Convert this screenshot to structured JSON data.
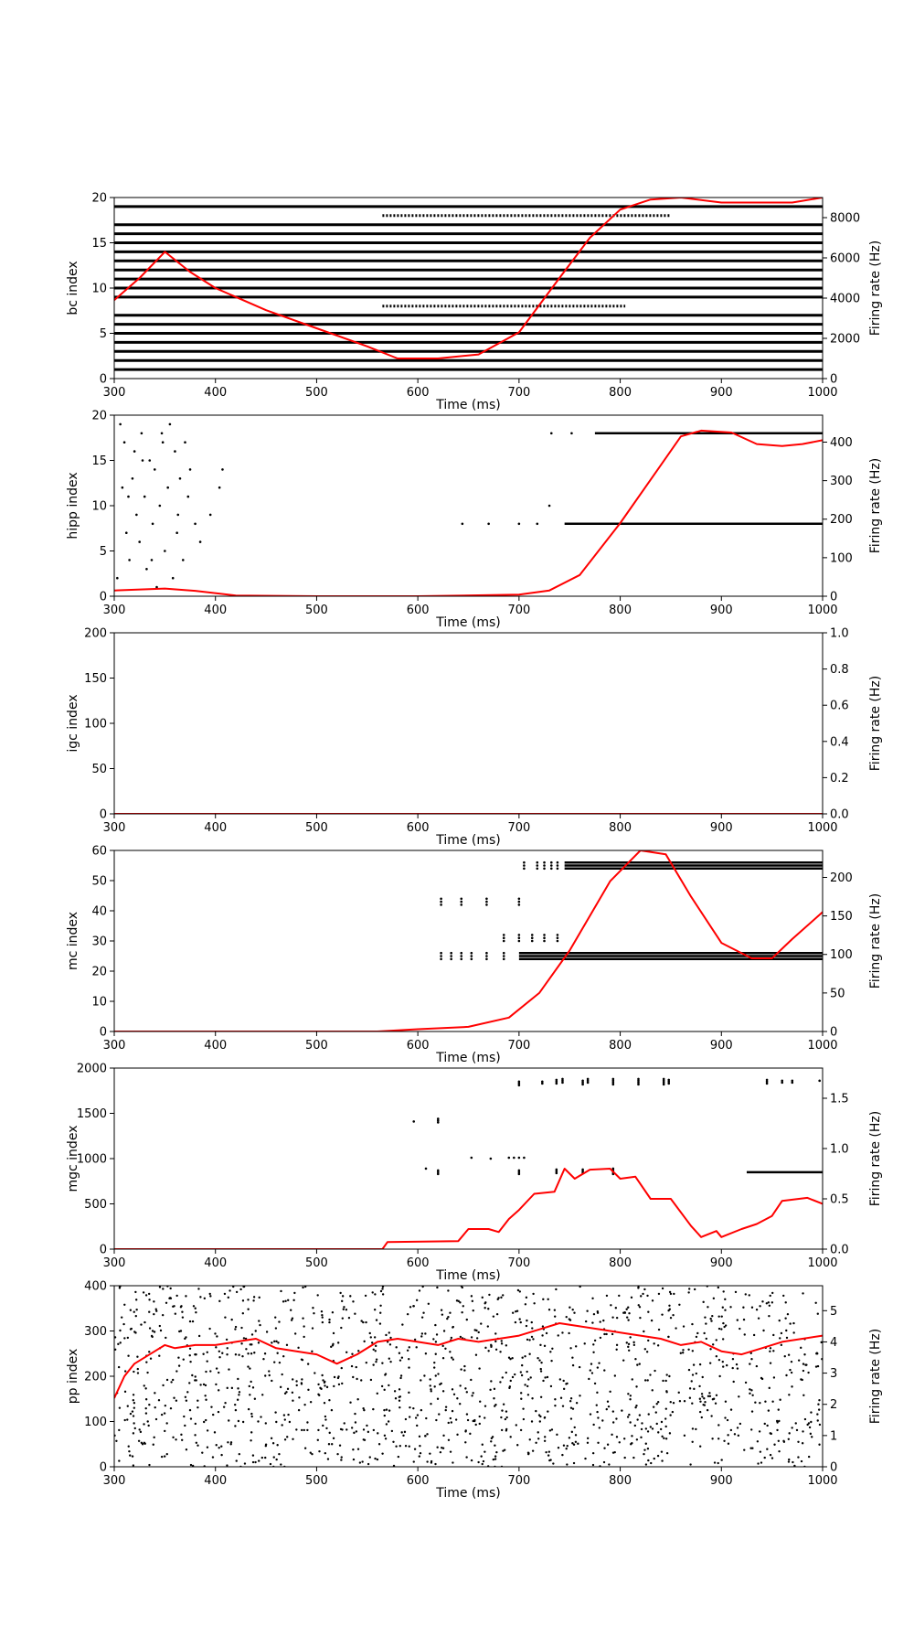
{
  "figure": {
    "background": "#ffffff",
    "spike_color": "#000000",
    "rate_color": "#ff0000",
    "panel_count": 6
  },
  "chart_data": [
    {
      "type": "scatter",
      "name": "bc",
      "xlabel": "Time (ms)",
      "ylabel": "bc index",
      "y2label": "Firing rate (Hz)",
      "xlim": [
        300,
        1000
      ],
      "ylim": [
        0,
        20
      ],
      "y2lim": [
        0,
        9000
      ],
      "xticks": [
        300,
        400,
        500,
        600,
        700,
        800,
        900,
        1000
      ],
      "yticks": [
        0,
        5,
        10,
        15,
        20
      ],
      "y2ticks": [
        0,
        2000,
        4000,
        6000,
        8000
      ],
      "spike_rows": [
        1,
        2,
        3,
        4,
        5,
        6,
        7,
        9,
        10,
        11,
        12,
        13,
        14,
        15,
        16,
        17,
        19
      ],
      "spike_row_range": [
        300,
        1000
      ],
      "partial_rows": [
        {
          "index": 8,
          "x_start": 565,
          "x_end": 805
        },
        {
          "index": 18,
          "x_start": 565,
          "x_end": 850
        }
      ],
      "rate": {
        "x": [
          300,
          325,
          350,
          375,
          400,
          450,
          500,
          550,
          580,
          620,
          660,
          700,
          740,
          770,
          800,
          830,
          860,
          900,
          970,
          1000
        ],
        "y": [
          3900,
          5000,
          6300,
          5300,
          4500,
          3400,
          2500,
          1600,
          1000,
          1000,
          1200,
          2300,
          5000,
          7000,
          8400,
          8900,
          9000,
          8750,
          8750,
          9000
        ]
      }
    },
    {
      "type": "scatter",
      "name": "hipp",
      "xlabel": "Time (ms)",
      "ylabel": "hipp index",
      "y2label": "Firing rate (Hz)",
      "xlim": [
        300,
        1000
      ],
      "ylim": [
        0,
        20
      ],
      "y2lim": [
        0,
        470
      ],
      "xticks": [
        300,
        400,
        500,
        600,
        700,
        800,
        900,
        1000
      ],
      "yticks": [
        0,
        5,
        10,
        15,
        20
      ],
      "y2ticks": [
        0,
        100,
        200,
        300,
        400
      ],
      "spikes": [
        [
          303,
          2
        ],
        [
          306,
          19
        ],
        [
          308,
          12
        ],
        [
          310,
          17
        ],
        [
          312,
          7
        ],
        [
          315,
          4
        ],
        [
          318,
          13
        ],
        [
          320,
          16
        ],
        [
          322,
          9
        ],
        [
          325,
          6
        ],
        [
          327,
          18
        ],
        [
          330,
          11
        ],
        [
          332,
          3
        ],
        [
          335,
          15
        ],
        [
          338,
          8
        ],
        [
          340,
          14
        ],
        [
          342,
          1
        ],
        [
          345,
          10
        ],
        [
          348,
          17
        ],
        [
          350,
          5
        ],
        [
          353,
          12
        ],
        [
          355,
          19
        ],
        [
          358,
          2
        ],
        [
          360,
          16
        ],
        [
          363,
          9
        ],
        [
          365,
          13
        ],
        [
          368,
          4
        ],
        [
          370,
          17
        ],
        [
          373,
          11
        ],
        [
          375,
          14
        ],
        [
          380,
          8
        ],
        [
          385,
          6
        ],
        [
          395,
          9
        ],
        [
          404,
          12
        ],
        [
          407,
          14
        ],
        [
          314,
          11
        ],
        [
          328,
          15
        ],
        [
          337,
          4
        ],
        [
          347,
          18
        ],
        [
          362,
          7
        ],
        [
          644,
          8
        ],
        [
          670,
          8
        ],
        [
          700,
          8
        ],
        [
          718,
          8
        ],
        [
          730,
          10
        ],
        [
          732,
          18
        ],
        [
          752,
          18
        ]
      ],
      "spike_rows": [
        {
          "index": 8,
          "x_start": 745,
          "x_end": 1000
        },
        {
          "index": 18,
          "x_start": 775,
          "x_end": 1000
        }
      ],
      "rate": {
        "x": [
          300,
          350,
          380,
          420,
          500,
          600,
          700,
          730,
          760,
          800,
          840,
          860,
          880,
          910,
          935,
          960,
          980,
          1000
        ],
        "y": [
          15,
          20,
          14,
          2,
          0,
          0,
          4,
          15,
          55,
          190,
          340,
          415,
          430,
          425,
          395,
          390,
          395,
          405
        ]
      }
    },
    {
      "type": "scatter",
      "name": "igc",
      "xlabel": "Time (ms)",
      "ylabel": "igc index",
      "y2label": "Firing rate (Hz)",
      "xlim": [
        300,
        1000
      ],
      "ylim": [
        0,
        200
      ],
      "y2lim": [
        0,
        1
      ],
      "xticks": [
        300,
        400,
        500,
        600,
        700,
        800,
        900,
        1000
      ],
      "yticks": [
        0,
        50,
        100,
        150,
        200
      ],
      "y2ticks": [
        0.0,
        0.2,
        0.4,
        0.6,
        0.8,
        1.0
      ],
      "spikes": [],
      "rate": {
        "x": [
          300,
          1000
        ],
        "y": [
          0,
          0
        ]
      }
    },
    {
      "type": "scatter",
      "name": "mc",
      "xlabel": "Time (ms)",
      "ylabel": "mc index",
      "y2label": "Firing rate (Hz)",
      "xlim": [
        300,
        1000
      ],
      "ylim": [
        0,
        60
      ],
      "y2lim": [
        0,
        235
      ],
      "xticks": [
        300,
        400,
        500,
        600,
        700,
        800,
        900,
        1000
      ],
      "yticks": [
        0,
        10,
        20,
        30,
        40,
        50,
        60
      ],
      "y2ticks": [
        0,
        50,
        100,
        150,
        200
      ],
      "spike_columns": [
        {
          "x": 623,
          "rows": [
            24,
            25,
            26,
            42,
            43,
            44
          ]
        },
        {
          "x": 633,
          "rows": [
            24,
            25,
            26
          ]
        },
        {
          "x": 643,
          "rows": [
            24,
            25,
            26,
            42,
            43,
            44
          ]
        },
        {
          "x": 653,
          "rows": [
            24,
            25,
            26
          ]
        },
        {
          "x": 668,
          "rows": [
            24,
            25,
            26,
            42,
            43,
            44
          ]
        },
        {
          "x": 685,
          "rows": [
            24,
            25,
            26,
            30,
            31,
            32
          ]
        },
        {
          "x": 700,
          "rows": [
            30,
            31,
            32,
            42,
            43,
            44
          ]
        },
        {
          "x": 705,
          "rows": [
            54,
            55,
            56
          ]
        },
        {
          "x": 713,
          "rows": [
            30,
            31,
            32
          ]
        },
        {
          "x": 718,
          "rows": [
            54,
            55,
            56
          ]
        },
        {
          "x": 725,
          "rows": [
            30,
            31,
            32,
            54,
            55,
            56
          ]
        },
        {
          "x": 732,
          "rows": [
            54,
            55,
            56
          ]
        },
        {
          "x": 738,
          "rows": [
            30,
            31,
            32,
            54,
            55,
            56
          ]
        }
      ],
      "spike_rows": [
        {
          "index": 24,
          "x_start": 700,
          "x_end": 1000
        },
        {
          "index": 25,
          "x_start": 700,
          "x_end": 1000
        },
        {
          "index": 26,
          "x_start": 700,
          "x_end": 1000
        },
        {
          "index": 54,
          "x_start": 745,
          "x_end": 1000
        },
        {
          "index": 55,
          "x_start": 745,
          "x_end": 1000
        },
        {
          "index": 56,
          "x_start": 745,
          "x_end": 1000
        }
      ],
      "rate": {
        "x": [
          300,
          560,
          600,
          650,
          690,
          720,
          750,
          790,
          820,
          845,
          870,
          900,
          930,
          950,
          970,
          1000
        ],
        "y": [
          0,
          0,
          3,
          6,
          18,
          50,
          105,
          195,
          235,
          230,
          175,
          115,
          95,
          95,
          120,
          155
        ]
      }
    },
    {
      "type": "scatter",
      "name": "mgc",
      "xlabel": "Time (ms)",
      "ylabel": "mgc index",
      "y2label": "Firing rate (Hz)",
      "xlim": [
        300,
        1000
      ],
      "ylim": [
        0,
        2000
      ],
      "y2lim": [
        0,
        1.8
      ],
      "xticks": [
        300,
        400,
        500,
        600,
        700,
        800,
        900,
        1000
      ],
      "yticks": [
        0,
        500,
        1000,
        1500,
        2000
      ],
      "y2ticks": [
        0.0,
        0.5,
        1.0,
        1.5
      ],
      "spike_columns": [
        {
          "x": 596,
          "rows": [
            1410
          ]
        },
        {
          "x": 620,
          "rows": [
            1400,
            1420,
            1440
          ]
        },
        {
          "x": 608,
          "rows": [
            890
          ]
        },
        {
          "x": 620,
          "rows": [
            830,
            850,
            870
          ]
        },
        {
          "x": 653,
          "rows": [
            1010
          ]
        },
        {
          "x": 672,
          "rows": [
            1000
          ]
        },
        {
          "x": 690,
          "rows": [
            1010
          ]
        },
        {
          "x": 695,
          "rows": [
            1010
          ]
        },
        {
          "x": 700,
          "rows": [
            1010,
            1810,
            1830,
            1850,
            830,
            850,
            870
          ]
        },
        {
          "x": 705,
          "rows": [
            1010
          ]
        },
        {
          "x": 723,
          "rows": [
            1830,
            1850
          ]
        },
        {
          "x": 737,
          "rows": [
            1830,
            1850,
            1870,
            840,
            860,
            880
          ]
        },
        {
          "x": 743,
          "rows": [
            1840,
            1860,
            1880
          ]
        },
        {
          "x": 763,
          "rows": [
            1820,
            1840,
            1860,
            840,
            860,
            880
          ]
        },
        {
          "x": 768,
          "rows": [
            1840,
            1860,
            1880
          ]
        },
        {
          "x": 793,
          "rows": [
            1820,
            1840,
            1860,
            1880,
            830,
            850,
            870,
            890
          ]
        },
        {
          "x": 818,
          "rows": [
            1820,
            1840,
            1860,
            1880
          ]
        },
        {
          "x": 843,
          "rows": [
            1820,
            1840,
            1860,
            1880
          ]
        },
        {
          "x": 848,
          "rows": [
            1830,
            1850,
            1870
          ]
        },
        {
          "x": 945,
          "rows": [
            1830,
            1850,
            1870
          ]
        },
        {
          "x": 960,
          "rows": [
            1840,
            1860
          ]
        },
        {
          "x": 970,
          "rows": [
            1840,
            1860
          ]
        },
        {
          "x": 997,
          "rows": [
            1860
          ]
        }
      ],
      "spike_rows": [
        {
          "index": 850,
          "x_start": 925,
          "x_end": 1000
        }
      ],
      "rate": {
        "x": [
          300,
          565,
          570,
          640,
          650,
          670,
          680,
          690,
          700,
          715,
          735,
          745,
          755,
          770,
          790,
          800,
          815,
          830,
          850,
          870,
          880,
          895,
          900,
          920,
          935,
          950,
          960,
          985,
          1000
        ],
        "y": [
          0,
          0,
          0.07,
          0.08,
          0.2,
          0.2,
          0.17,
          0.3,
          0.39,
          0.55,
          0.57,
          0.8,
          0.7,
          0.79,
          0.8,
          0.7,
          0.72,
          0.5,
          0.5,
          0.23,
          0.12,
          0.18,
          0.12,
          0.2,
          0.25,
          0.33,
          0.48,
          0.51,
          0.45
        ]
      }
    },
    {
      "type": "scatter",
      "name": "pp",
      "xlabel": "Time (ms)",
      "ylabel": "pp index",
      "y2label": "Firing rate (Hz)",
      "xlim": [
        300,
        1000
      ],
      "ylim": [
        0,
        400
      ],
      "y2lim": [
        0,
        5.8
      ],
      "xticks": [
        300,
        400,
        500,
        600,
        700,
        800,
        900,
        1000
      ],
      "yticks": [
        0,
        100,
        200,
        300,
        400
      ],
      "y2ticks": [
        0,
        1,
        2,
        3,
        4,
        5
      ],
      "random_spikes": {
        "count": 1400,
        "seed": 7
      },
      "rate": {
        "x": [
          300,
          310,
          320,
          340,
          350,
          360,
          380,
          400,
          420,
          440,
          460,
          480,
          500,
          520,
          540,
          560,
          580,
          600,
          620,
          640,
          660,
          680,
          700,
          720,
          740,
          760,
          780,
          800,
          820,
          840,
          860,
          880,
          900,
          920,
          940,
          960,
          980,
          1000
        ],
        "y": [
          2.2,
          2.9,
          3.3,
          3.7,
          3.9,
          3.8,
          3.9,
          3.9,
          4.0,
          4.1,
          3.8,
          3.7,
          3.6,
          3.3,
          3.6,
          4.0,
          4.1,
          4.0,
          3.9,
          4.1,
          4.0,
          4.1,
          4.2,
          4.4,
          4.6,
          4.5,
          4.4,
          4.3,
          4.2,
          4.1,
          3.9,
          4.0,
          3.7,
          3.6,
          3.8,
          4.0,
          4.1,
          4.2
        ]
      }
    }
  ]
}
